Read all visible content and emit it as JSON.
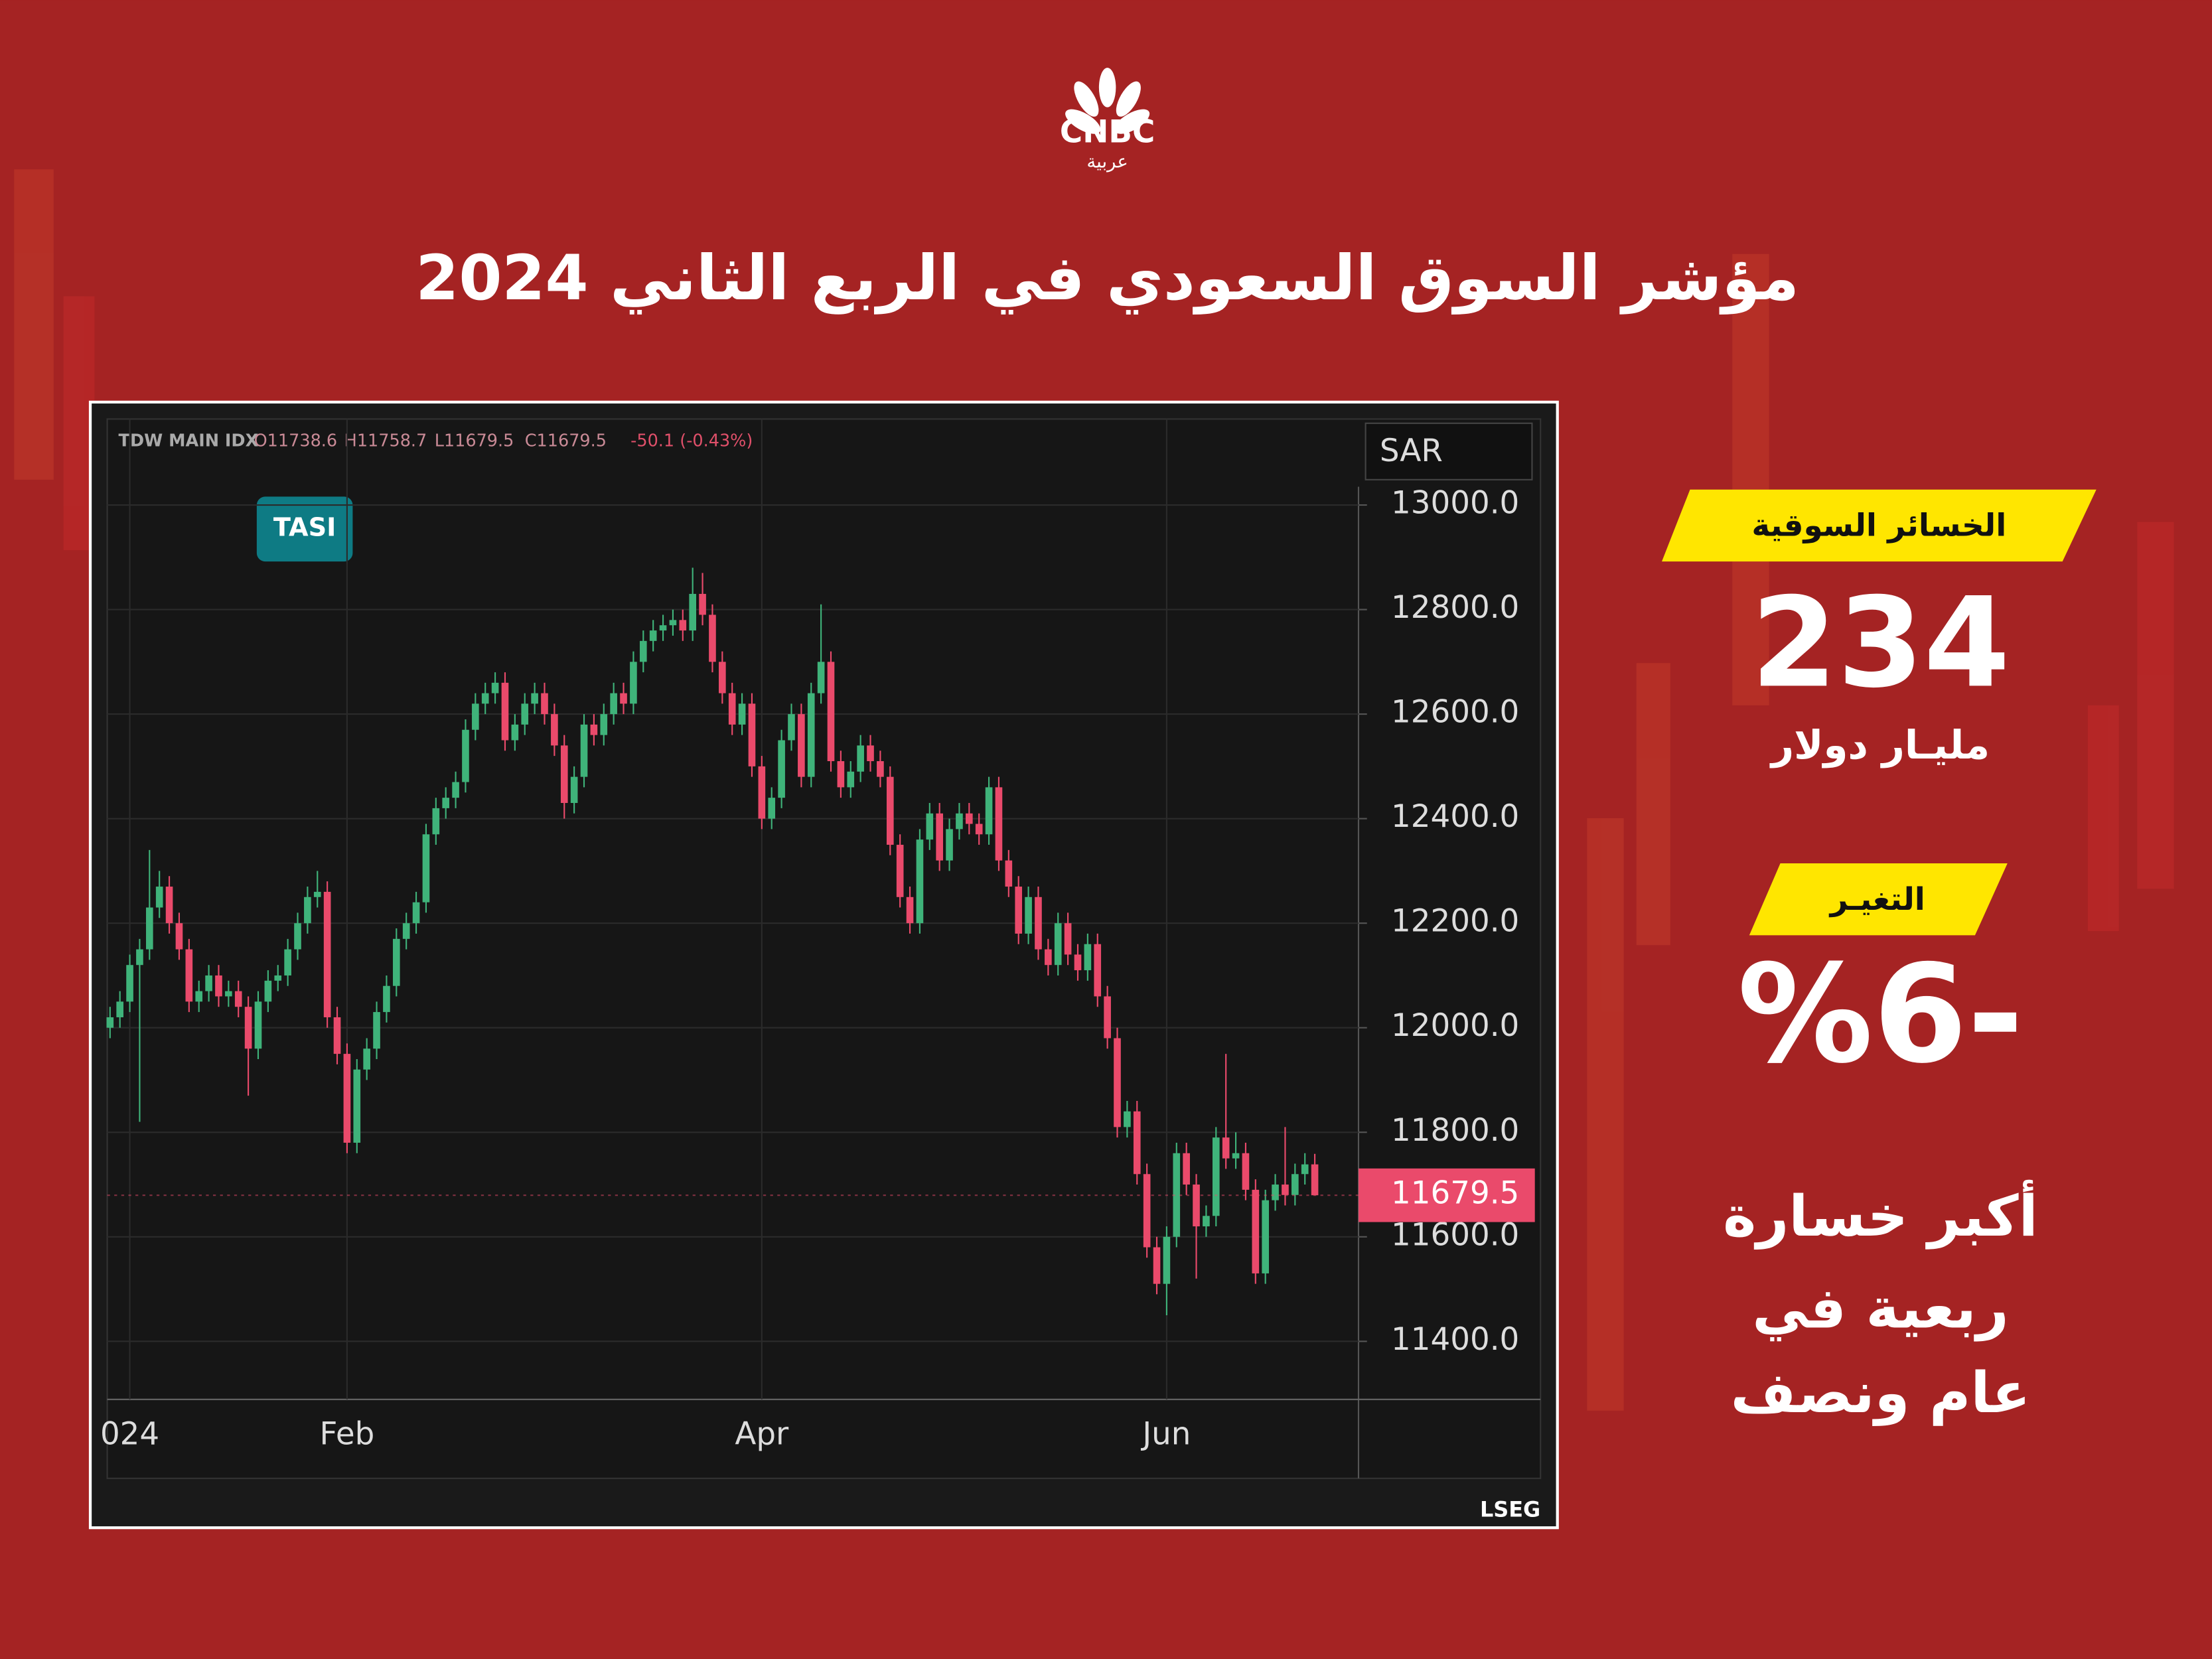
{
  "logo": {
    "brand": "CNBC",
    "sub": "عربية"
  },
  "header": {
    "title": "مؤشر السوق السعودي في الربع الثاني 2024"
  },
  "chart_data": {
    "type": "candlestick",
    "label": "TASI",
    "currency": "SAR",
    "source": "LSEG",
    "header_symbol": "TDW MAIN IDX",
    "header_values": [
      "O11738.6",
      "H11758.7",
      "L11679.5",
      "C11679.5",
      "-50.1 (-0.43%)"
    ],
    "up_color": "#3fb37a",
    "down_color": "#ea4a6b",
    "grid": true,
    "ylim": [
      11289,
      13035
    ],
    "yticks": [
      {
        "value": 11400,
        "label": "11400.0"
      },
      {
        "value": 11600,
        "label": "11600.0"
      },
      {
        "value": 11800,
        "label": "11800.0"
      },
      {
        "value": 12000,
        "label": "12000.0"
      },
      {
        "value": 12200,
        "label": "12200.0"
      },
      {
        "value": 12400,
        "label": "12400.0"
      },
      {
        "value": 12600,
        "label": "12600.0"
      },
      {
        "value": 12800,
        "label": "12800.0"
      },
      {
        "value": 13000,
        "label": "13000.0"
      }
    ],
    "xticks": [
      {
        "value": 2,
        "label": "024"
      },
      {
        "value": 24,
        "label": "Feb"
      },
      {
        "value": 66,
        "label": "Apr"
      },
      {
        "value": 107,
        "label": "Jun"
      }
    ],
    "last_price": 11679.5,
    "open": [
      12000,
      12020,
      12050,
      12120,
      12150,
      12230,
      12270,
      12200,
      12150,
      12050,
      12070,
      12100,
      12060,
      12070,
      12040,
      11960,
      12050,
      12090,
      12100,
      12150,
      12200,
      12250,
      12260,
      12020,
      11950,
      11780,
      11920,
      11960,
      12030,
      12080,
      12170,
      12200,
      12240,
      12370,
      12420,
      12440,
      12470,
      12570,
      12620,
      12640,
      12660,
      12550,
      12580,
      12620,
      12640,
      12600,
      12540,
      12430,
      12480,
      12580,
      12560,
      12600,
      12640,
      12620,
      12700,
      12740,
      12760,
      12770,
      12780,
      12760,
      12830,
      12790,
      12700,
      12640,
      12580,
      12620,
      12500,
      12400,
      12440,
      12550,
      12600,
      12480,
      12640,
      12700,
      12510,
      12460,
      12490,
      12540,
      12510,
      12480,
      12350,
      12250,
      12200,
      12360,
      12410,
      12320,
      12380,
      12410,
      12390,
      12370,
      12460,
      12320,
      12270,
      12180,
      12250,
      12150,
      12120,
      12200,
      12140,
      12110,
      12160,
      12060,
      11980,
      11810,
      11840,
      11720,
      11580,
      11510,
      11600,
      11760,
      11700,
      11620,
      11640,
      11790,
      11750,
      11760,
      11690,
      11530,
      11670,
      11700,
      11680,
      11720,
      11738.6
    ],
    "high": [
      12040,
      12070,
      12140,
      12170,
      12340,
      12300,
      12290,
      12220,
      12170,
      12090,
      12120,
      12120,
      12090,
      12090,
      12060,
      12070,
      12110,
      12120,
      12170,
      12220,
      12270,
      12300,
      12280,
      12040,
      11970,
      11940,
      11980,
      12050,
      12100,
      12190,
      12220,
      12260,
      12390,
      12440,
      12460,
      12490,
      12590,
      12640,
      12660,
      12680,
      12680,
      12600,
      12640,
      12660,
      12660,
      12620,
      12560,
      12500,
      12600,
      12600,
      12620,
      12660,
      12660,
      12720,
      12760,
      12780,
      12790,
      12800,
      12800,
      12880,
      12870,
      12810,
      12720,
      12660,
      12640,
      12640,
      12520,
      12460,
      12570,
      12620,
      12620,
      12660,
      12810,
      12720,
      12530,
      12510,
      12560,
      12560,
      12530,
      12500,
      12370,
      12270,
      12380,
      12430,
      12430,
      12400,
      12430,
      12430,
      12410,
      12480,
      12480,
      12340,
      12290,
      12270,
      12270,
      12170,
      12220,
      12220,
      12160,
      12180,
      12180,
      12080,
      12000,
      11860,
      11860,
      11740,
      11600,
      11620,
      11780,
      11780,
      11720,
      11660,
      11810,
      11950,
      11800,
      11780,
      11710,
      11690,
      11720,
      11810,
      11740,
      11760,
      11758.7
    ],
    "low": [
      11980,
      12000,
      12030,
      11820,
      12130,
      12210,
      12180,
      12130,
      12030,
      12030,
      12050,
      12040,
      12040,
      12020,
      11870,
      11940,
      12030,
      12070,
      12080,
      12130,
      12180,
      12230,
      12000,
      11930,
      11760,
      11760,
      11900,
      11940,
      12010,
      12060,
      12150,
      12180,
      12220,
      12350,
      12400,
      12420,
      12450,
      12550,
      12600,
      12620,
      12530,
      12530,
      12560,
      12600,
      12580,
      12520,
      12400,
      12410,
      12460,
      12540,
      12540,
      12580,
      12600,
      12600,
      12680,
      12720,
      12740,
      12750,
      12740,
      12740,
      12770,
      12680,
      12620,
      12560,
      12560,
      12480,
      12380,
      12380,
      12420,
      12530,
      12460,
      12460,
      12620,
      12490,
      12440,
      12440,
      12470,
      12490,
      12460,
      12330,
      12230,
      12180,
      12180,
      12340,
      12300,
      12300,
      12360,
      12370,
      12350,
      12350,
      12300,
      12250,
      12160,
      12160,
      12130,
      12100,
      12100,
      12120,
      12090,
      12090,
      12040,
      11960,
      11790,
      11790,
      11700,
      11560,
      11490,
      11450,
      11580,
      11680,
      11520,
      11600,
      11620,
      11730,
      11730,
      11670,
      11510,
      11510,
      11650,
      11660,
      11660,
      11700,
      11679.5
    ],
    "close": [
      12020,
      12050,
      12120,
      12150,
      12230,
      12270,
      12200,
      12150,
      12050,
      12070,
      12100,
      12060,
      12070,
      12040,
      11960,
      12050,
      12090,
      12100,
      12150,
      12200,
      12250,
      12260,
      12020,
      11950,
      11780,
      11920,
      11960,
      12030,
      12080,
      12170,
      12200,
      12240,
      12370,
      12420,
      12440,
      12470,
      12570,
      12620,
      12640,
      12660,
      12550,
      12580,
      12620,
      12640,
      12600,
      12540,
      12430,
      12480,
      12580,
      12560,
      12600,
      12640,
      12620,
      12700,
      12740,
      12760,
      12770,
      12780,
      12760,
      12830,
      12790,
      12700,
      12640,
      12580,
      12620,
      12500,
      12400,
      12440,
      12550,
      12600,
      12480,
      12640,
      12700,
      12510,
      12460,
      12490,
      12540,
      12510,
      12480,
      12350,
      12250,
      12200,
      12360,
      12410,
      12320,
      12380,
      12410,
      12390,
      12370,
      12460,
      12320,
      12270,
      12180,
      12250,
      12150,
      12120,
      12200,
      12140,
      12110,
      12160,
      12060,
      11980,
      11810,
      11840,
      11720,
      11580,
      11510,
      11600,
      11760,
      11700,
      11620,
      11640,
      11790,
      11750,
      11760,
      11690,
      11530,
      11670,
      11700,
      11680,
      11720,
      11738.6,
      11679.5
    ]
  },
  "panel": {
    "loss_label": "الخسائر السوقية",
    "loss_value": 234,
    "loss_unit": "مليـار دولار",
    "change_label": "التغيـر",
    "change_value": "%6-",
    "note": [
      "أكبر خسارة",
      "ربعية في",
      "عام ونصف"
    ]
  }
}
